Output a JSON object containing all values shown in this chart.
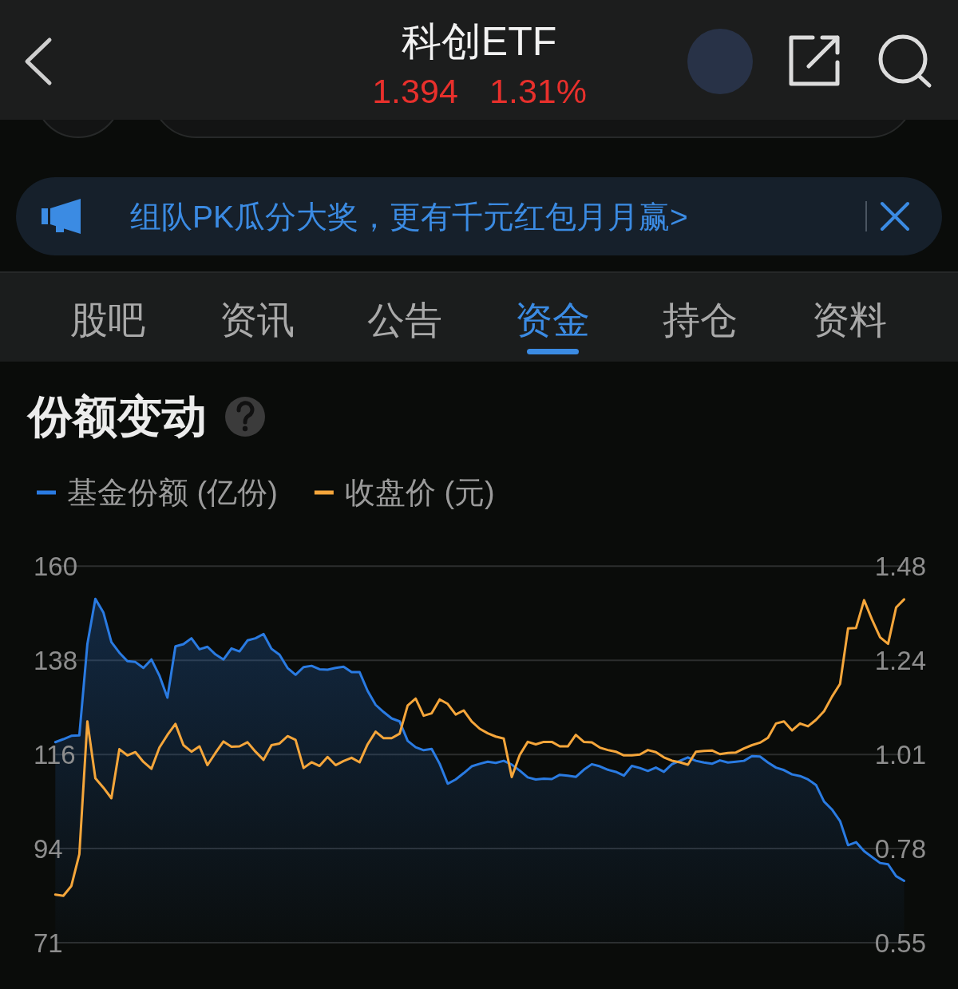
{
  "chart_data": {
    "type": "line",
    "title": "份额变动",
    "annotations": [
      "科创ETF",
      "1.394",
      "1.31%",
      "组队PK瓜分大奖，更有千元红包月月赢>",
      "股吧",
      "资讯",
      "公告",
      "资金",
      "持仓",
      "资料"
    ],
    "categories": [
      null,
      null,
      null,
      null,
      null,
      null,
      null,
      null,
      null,
      null,
      null,
      null,
      null,
      null,
      null,
      null,
      null,
      null,
      null,
      null,
      null,
      null,
      null,
      null,
      null,
      null,
      null,
      null,
      null,
      null,
      null,
      null,
      null,
      null,
      null,
      null,
      null,
      null,
      null,
      null,
      null,
      null,
      null,
      null,
      null,
      null,
      null,
      null,
      null,
      null,
      null,
      null,
      null,
      null,
      null,
      null,
      null,
      null,
      null,
      null,
      null,
      null,
      null,
      null,
      null,
      null,
      null,
      null,
      null,
      null,
      null,
      null,
      null,
      null,
      null,
      null,
      null,
      null,
      null,
      null,
      null,
      null,
      null,
      null,
      null,
      null,
      null,
      null,
      null,
      null,
      null,
      null,
      null,
      null,
      null,
      null,
      null,
      null,
      null,
      null,
      null,
      null,
      null,
      null,
      null,
      null,
      null
    ],
    "series": [
      {
        "name": "基金份额 (亿份)",
        "type": "area",
        "color": "#2a7be2",
        "values": [
          118.7,
          119.4,
          120.2,
          120.3,
          141.8,
          152.5,
          149.3,
          142.3,
          139.8,
          137.8,
          137.6,
          136.2,
          138.2,
          134.4,
          129.2,
          141.3,
          141.8,
          143.2,
          140.6,
          141.2,
          139.4,
          138.2,
          140.8,
          140.1,
          142.7,
          143.2,
          144.2,
          140.7,
          139.3,
          136.2,
          134.6,
          136.4,
          136.7,
          135.9,
          135.8,
          136.2,
          136.5,
          135.2,
          135.2,
          130.8,
          127.5,
          125.8,
          124.3,
          123.6,
          119.0,
          117.5,
          116.8,
          117.1,
          113.6,
          108.9,
          109.9,
          111.4,
          113.0,
          113.6,
          114.1,
          113.8,
          114.3,
          113.4,
          112.0,
          110.4,
          109.9,
          110.1,
          110.0,
          111.0,
          110.8,
          110.5,
          112.2,
          113.5,
          113.0,
          112.2,
          111.7,
          110.8,
          113.1,
          112.6,
          111.9,
          112.7,
          111.7,
          113.5,
          114.3,
          115.1,
          114.3,
          113.9,
          113.6,
          114.4,
          113.9,
          114.1,
          114.3,
          115.4,
          115.3,
          113.9,
          112.7,
          112.1,
          111.1,
          110.7,
          109.9,
          108.6,
          104.7,
          102.8,
          100.1,
          94.4,
          95.1,
          93.0,
          91.6,
          90.2,
          89.9,
          87.1,
          86.0
        ]
      },
      {
        "name": "收盘价 (元)",
        "axis": "y2",
        "color": "#f5a63b",
        "values": [
          0.671,
          0.668,
          0.692,
          0.77,
          1.095,
          0.956,
          0.933,
          0.907,
          1.027,
          1.012,
          1.02,
          0.996,
          0.979,
          1.031,
          1.062,
          1.089,
          1.037,
          1.021,
          1.034,
          0.988,
          1.018,
          1.046,
          1.033,
          1.034,
          1.044,
          1.021,
          1.001,
          1.037,
          1.041,
          1.059,
          1.05,
          0.981,
          0.995,
          0.986,
          1.008,
          0.988,
          0.998,
          1.006,
          0.995,
          1.039,
          1.07,
          1.054,
          1.054,
          1.065,
          1.134,
          1.151,
          1.109,
          1.115,
          1.149,
          1.138,
          1.112,
          1.122,
          1.095,
          1.077,
          1.066,
          1.058,
          1.053,
          0.959,
          1.013,
          1.045,
          1.039,
          1.045,
          1.045,
          1.034,
          1.034,
          1.062,
          1.045,
          1.044,
          1.031,
          1.025,
          1.021,
          1.012,
          1.012,
          1.014,
          1.025,
          1.02,
          1.007,
          0.999,
          0.995,
          0.989,
          1.021,
          1.023,
          1.024,
          1.015,
          1.018,
          1.019,
          1.029,
          1.037,
          1.043,
          1.055,
          1.09,
          1.095,
          1.073,
          1.09,
          1.083,
          1.099,
          1.12,
          1.156,
          1.187,
          1.323,
          1.324,
          1.392,
          1.344,
          1.301,
          1.285,
          1.374,
          1.394
        ]
      }
    ],
    "ylim": [
      71.4,
      160.2
    ],
    "yticks": [
      {
        "value": 71.4,
        "label": "71"
      },
      {
        "value": 93.6,
        "label": "94"
      },
      {
        "value": 115.8,
        "label": "116"
      },
      138,
      {
        "value": 160.2,
        "label": "160"
      }
    ],
    "y2lim": [
      0.5532,
      1.4752
    ],
    "y2ticks": [
      {
        "value": 0.5532,
        "label": "0.55"
      },
      {
        "value": 0.7837,
        "label": "0.78"
      },
      {
        "value": 1.0142,
        "label": "1.01"
      },
      {
        "value": 1.2447,
        "label": "1.24"
      },
      {
        "value": 1.4752,
        "label": "1.48"
      }
    ],
    "grid": "y",
    "legend": "top left"
  }
}
